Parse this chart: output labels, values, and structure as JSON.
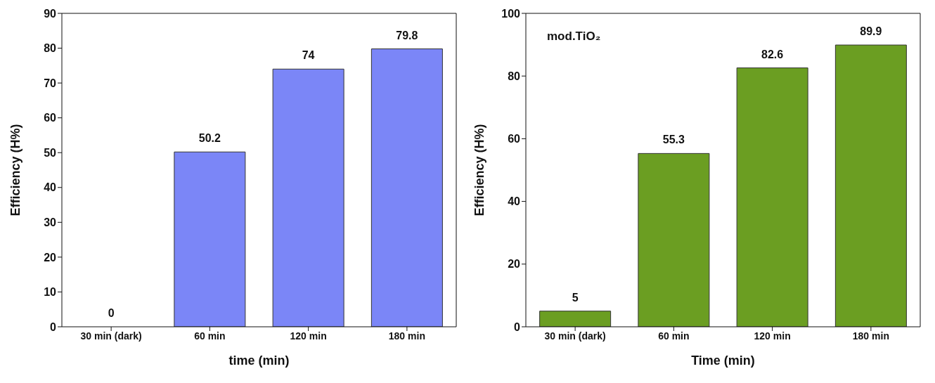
{
  "chart_data": [
    {
      "type": "bar",
      "categories": [
        "30 min (dark)",
        "60 min",
        "120 min",
        "180 min"
      ],
      "values": [
        0,
        50.2,
        74,
        79.8
      ],
      "color": "#7b86f7",
      "xlabel": "time (min)",
      "ylabel": "Efficiency (H%)",
      "ylim": [
        0,
        90
      ],
      "yticks": [
        0,
        10,
        20,
        30,
        40,
        50,
        60,
        70,
        80,
        90
      ],
      "data_labels": true,
      "grid": false,
      "legend": false
    },
    {
      "type": "bar",
      "title": "mod.TiO₂",
      "categories": [
        "30 min (dark)",
        "60 min",
        "120 min",
        "180 min"
      ],
      "values": [
        5,
        55.3,
        82.6,
        89.9
      ],
      "color": "#6b9e22",
      "xlabel": "Time (min)",
      "ylabel": "Efficiency (H%)",
      "ylim": [
        0,
        100
      ],
      "yticks": [
        0,
        20,
        40,
        60,
        80,
        100
      ],
      "data_labels": true,
      "grid": false,
      "legend": false
    }
  ]
}
